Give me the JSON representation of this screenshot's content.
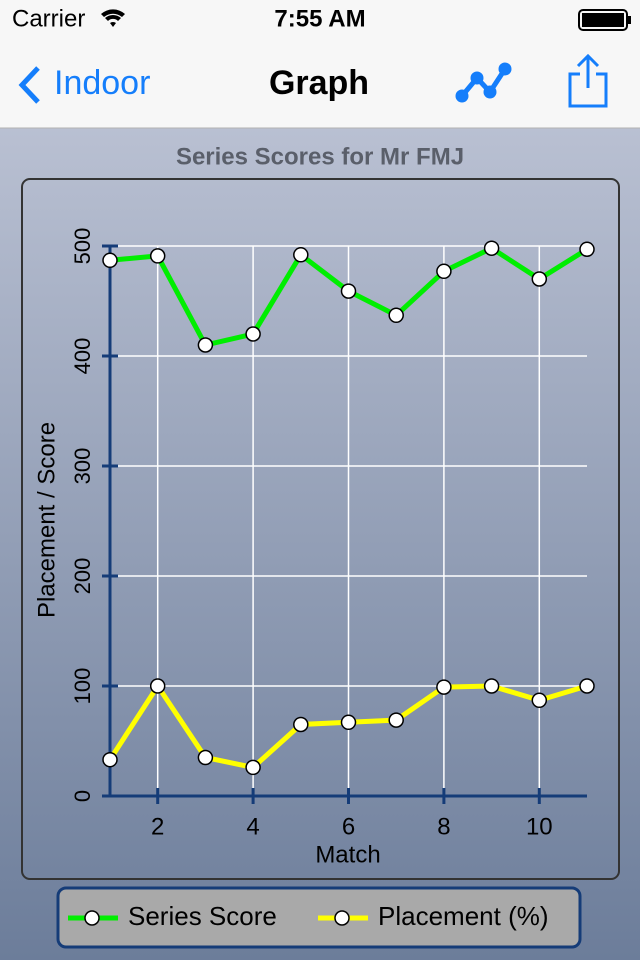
{
  "status_bar": {
    "carrier": "Carrier",
    "time": "7:55 AM"
  },
  "nav_bar": {
    "back": "Indoor",
    "title": "Graph"
  },
  "chart_data": {
    "type": "line",
    "title": "Series Scores for Mr FMJ",
    "x_label": "Match",
    "y_label": "Placement / Score",
    "x": [
      1,
      2,
      3,
      4,
      5,
      6,
      7,
      8,
      9,
      10,
      11
    ],
    "series": [
      {
        "name": "Series Score",
        "color": "#00ee00",
        "values": [
          487,
          491,
          410,
          420,
          492,
          459,
          437,
          477,
          498,
          470,
          497
        ]
      },
      {
        "name": "Placement (%)",
        "color": "#ffff00",
        "values": [
          33,
          100,
          35,
          26,
          65,
          67,
          69,
          99,
          100,
          87,
          100
        ]
      }
    ],
    "xlim": [
      1,
      11
    ],
    "xticks": [
      2,
      4,
      6,
      8,
      10
    ],
    "ylim": [
      0,
      500
    ],
    "yticks": [
      0,
      100,
      200,
      300,
      400,
      500
    ],
    "grid": true,
    "legend": "bottom"
  }
}
